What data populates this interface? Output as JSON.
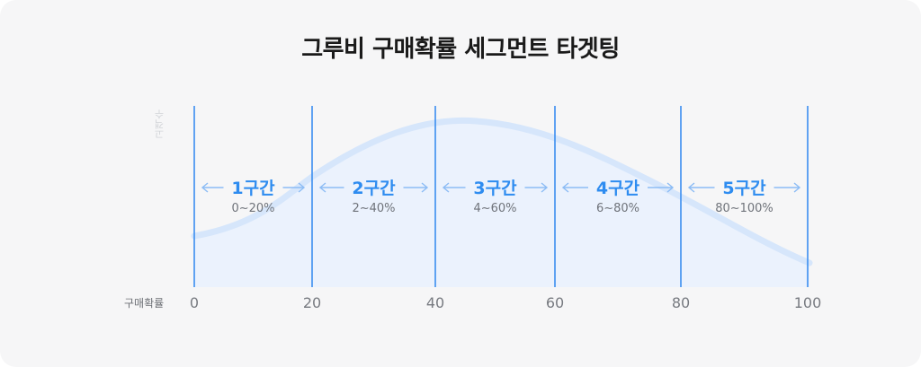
{
  "title": "그루비 구매확률 세그먼트 타겟팅",
  "y_axis_label": "고객수",
  "x_axis_label": "구매확률",
  "ticks": [
    "0",
    "20",
    "40",
    "60",
    "80",
    "100"
  ],
  "segments": [
    {
      "label": "1구간",
      "range": "0~20%"
    },
    {
      "label": "2구간",
      "range": "2~40%"
    },
    {
      "label": "3구간",
      "range": "4~60%"
    },
    {
      "label": "4구간",
      "range": "6~80%"
    },
    {
      "label": "5구간",
      "range": "80~100%"
    }
  ],
  "colors": {
    "accent": "#2e8cf0",
    "divider": "#3b8ef0",
    "curve": "#d6e6fb",
    "area": "#eaf2fd",
    "arrow": "#8cbcf5"
  }
}
